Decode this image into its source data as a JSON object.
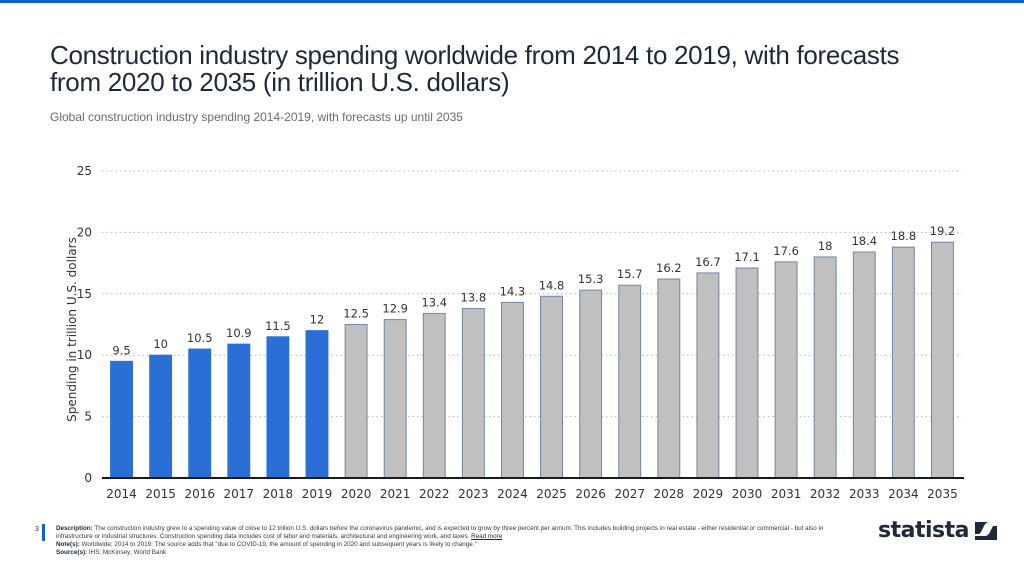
{
  "header": {
    "title": "Construction industry spending worldwide from 2014 to 2019, with forecasts from 2020 to 2035 (in trillion U.S. dollars)",
    "subtitle": "Global construction industry spending 2014-2019, with forecasts up until 2035"
  },
  "chart_data": {
    "type": "bar",
    "title": "Construction industry spending worldwide from 2014 to 2019, with forecasts from 2020 to 2035 (in trillion U.S. dollars)",
    "subtitle": "Global construction industry spending 2014-2019, with forecasts up until 2035",
    "xlabel": "",
    "ylabel": "Spending in trillion U.S. dollars",
    "ylim": [
      0,
      25
    ],
    "yticks": [
      0,
      5,
      10,
      15,
      20,
      25
    ],
    "grid": true,
    "categories": [
      "2014",
      "2015",
      "2016",
      "2017",
      "2018",
      "2019",
      "2020",
      "2021",
      "2022",
      "2023",
      "2024",
      "2025",
      "2026",
      "2027",
      "2028",
      "2029",
      "2030",
      "2031",
      "2032",
      "2033",
      "2034",
      "2035"
    ],
    "values": [
      9.5,
      10,
      10.5,
      10.9,
      11.5,
      12,
      12.5,
      12.9,
      13.4,
      13.8,
      14.3,
      14.8,
      15.3,
      15.7,
      16.2,
      16.7,
      17.1,
      17.6,
      18,
      18.4,
      18.8,
      19.2
    ],
    "data_labels": [
      "9.5",
      "10",
      "10.5",
      "10.9",
      "11.5",
      "12",
      "12.5",
      "12.9",
      "13.4",
      "13.8",
      "14.3",
      "14.8",
      "15.3",
      "15.7",
      "16.2",
      "16.7",
      "17.1",
      "17.6",
      "18",
      "18.4",
      "18.8",
      "19.2"
    ],
    "series_kind": [
      "actual",
      "actual",
      "actual",
      "actual",
      "actual",
      "actual",
      "forecast",
      "forecast",
      "forecast",
      "forecast",
      "forecast",
      "forecast",
      "forecast",
      "forecast",
      "forecast",
      "forecast",
      "forecast",
      "forecast",
      "forecast",
      "forecast",
      "forecast",
      "forecast"
    ],
    "colors": {
      "actual": "#2a6fd6",
      "forecast": "#c0c0c0",
      "forecast_border": "#6f87a8",
      "axis": "#1a1a1a",
      "grid": "#b5b5b5"
    }
  },
  "footer": {
    "page_number": "3",
    "description_label": "Description:",
    "description_text": "The construction industry grew to a spending value of close to 12 trillion U.S. dollars before the coronavirus pandemic, and is expected to grow by three percent per annum. This includes building projects in real estate - either residential or commercial - but also in infrastructure or industrial structures. Construction spending data includes cost of labor and materials, architectural and engineering work, and taxes.",
    "read_more": "Read more",
    "notes_label": "Note(s):",
    "notes_text": "Worldwide; 2014 to 2019; The source adds that \"due to COVID-19, the amount of spending in 2020 and subsequent years is likely to change.\"",
    "sources_label": "Source(s):",
    "sources_text": "IHS; McKinsey; World Bank"
  },
  "brand": {
    "logo_text": "statista",
    "accent": "#0a66c2"
  }
}
